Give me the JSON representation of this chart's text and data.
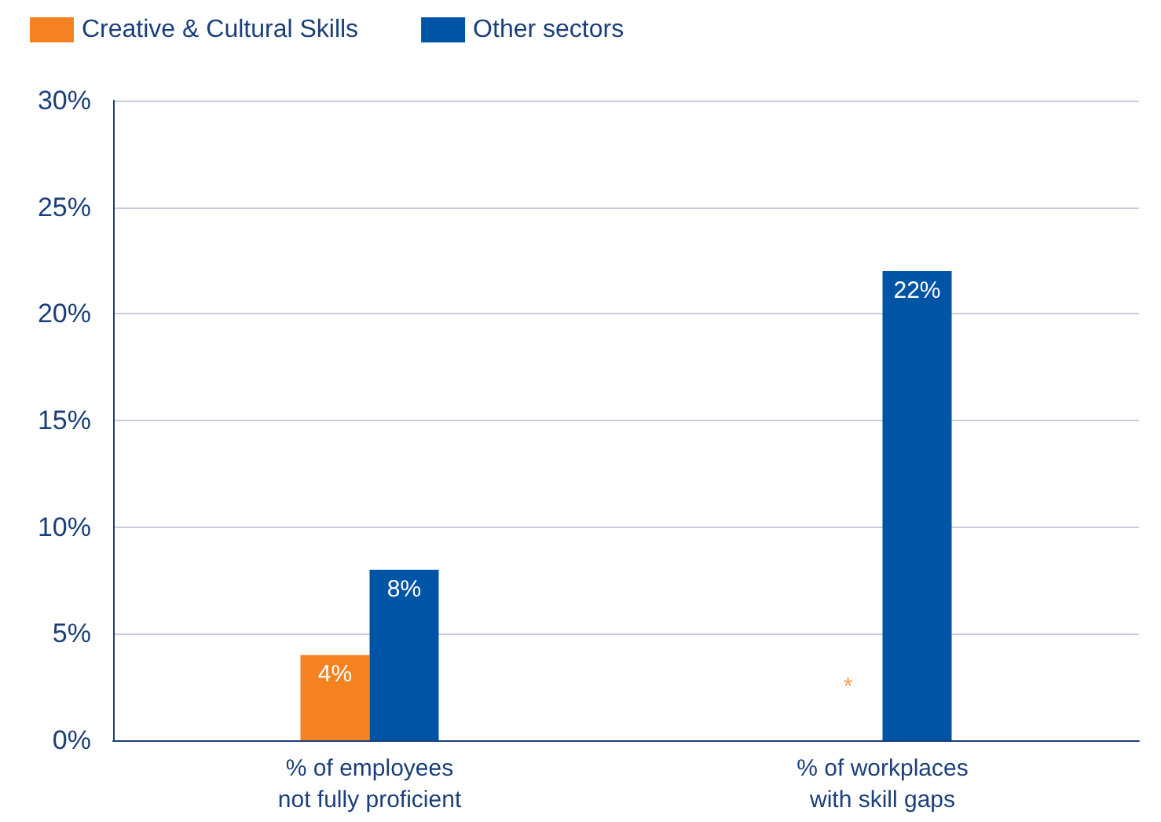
{
  "chart_data": {
    "type": "bar",
    "categories": [
      "% of employees\nnot fully proficient",
      "% of workplaces\nwith skill gaps"
    ],
    "series": [
      {
        "name": "Creative & Cultural Skills",
        "color": "#f58220",
        "values": [
          4,
          null
        ],
        "value_labels": [
          "4%",
          null
        ]
      },
      {
        "name": "Other sectors",
        "color": "#0054a6",
        "values": [
          8,
          22
        ],
        "value_labels": [
          "8%",
          "22%"
        ]
      }
    ],
    "ylim": [
      0,
      30
    ],
    "yticks": [
      {
        "value": 0,
        "label": "0%"
      },
      {
        "value": 5,
        "label": "5%"
      },
      {
        "value": 10,
        "label": "10%"
      },
      {
        "value": 15,
        "label": "15%"
      },
      {
        "value": 20,
        "label": "20%"
      },
      {
        "value": 25,
        "label": "25%"
      },
      {
        "value": 30,
        "label": "30%"
      }
    ],
    "grid": "y",
    "legend": "top left",
    "annotations": [
      {
        "text": "*",
        "x": "% of workplaces\nwith skill gaps",
        "y": 2.5
      }
    ]
  }
}
